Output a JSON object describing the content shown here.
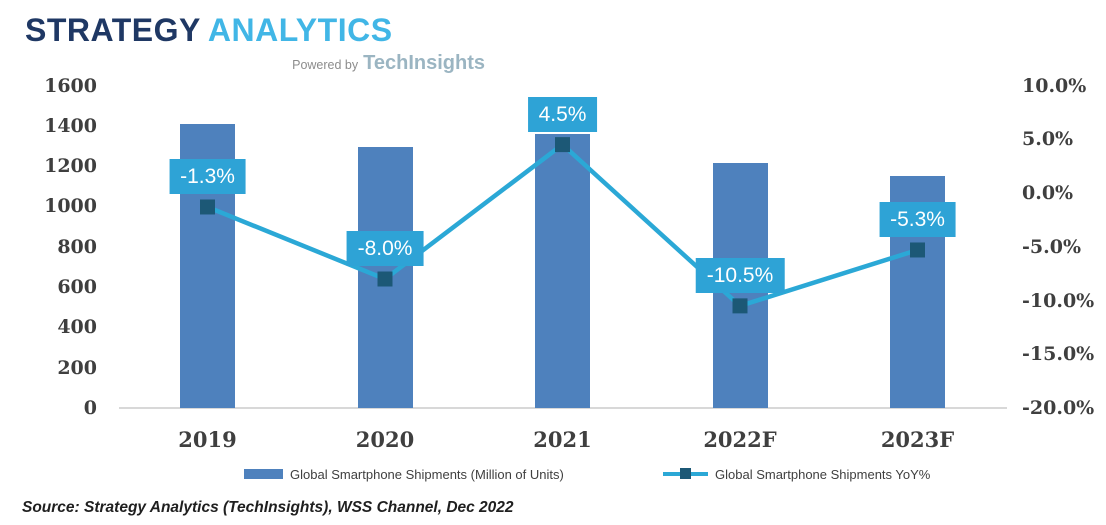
{
  "logo": {
    "brand_primary": "STRATEGY",
    "brand_secondary": "ANALYTICS",
    "powered_by": "Powered by",
    "powered_brand": "TechInsights"
  },
  "source_note": "Source: Strategy Analytics (TechInsights), WSS Channel, Dec 2022",
  "colors": {
    "background": "#FFFFFF",
    "bar": "#4E81BD",
    "line": "#2BA8D6",
    "marker": "#1C5876",
    "label_bg": "#2EA3D6",
    "label_text": "#FFFFFF",
    "axis_text": "#3F3F3F",
    "baseline": "#D8D8D8",
    "legend_text": "#404040",
    "source_text": "#1F1F1F",
    "logo_navy": "#1F3864",
    "logo_cyan": "#41B6E6",
    "powered_gray": "#8C8C8C",
    "techinsights_gray_blue": "#9BB5C2"
  },
  "chart_data": {
    "type": "combo: bar + line",
    "categories": [
      "2019",
      "2020",
      "2021",
      "2022F",
      "2023F"
    ],
    "series": [
      {
        "name": "Global Smartphone Shipments (Million of Units)",
        "type": "bar",
        "axis": "left",
        "values": [
          1410,
          1295,
          1360,
          1215,
          1150
        ]
      },
      {
        "name": "Global Smartphone Shipments YoY%",
        "type": "line",
        "axis": "right",
        "values": [
          -1.3,
          -8.0,
          4.5,
          -10.5,
          -5.3
        ],
        "point_labels": [
          "-1.3%",
          "-8.0%",
          "4.5%",
          "-10.5%",
          "-5.3%"
        ]
      }
    ],
    "left_axis": {
      "min": 0,
      "max": 1600,
      "tick_step": 200,
      "ticks": [
        1600,
        1400,
        1200,
        1000,
        800,
        600,
        400,
        200,
        0
      ],
      "tick_labels": [
        "1600",
        "1400",
        "1200",
        "1000",
        "800",
        "600",
        "400",
        "200",
        "0"
      ]
    },
    "right_axis": {
      "min": -20,
      "max": 10,
      "tick_step": 5,
      "ticks": [
        10,
        5,
        0,
        -5,
        -10,
        -15,
        -20
      ],
      "tick_labels": [
        "10.0%",
        "5.0%",
        "0.0%",
        "-5.0%",
        "-10.0%",
        "-15.0%",
        "-20.0%"
      ]
    },
    "grid": false,
    "legend_position": "bottom"
  }
}
